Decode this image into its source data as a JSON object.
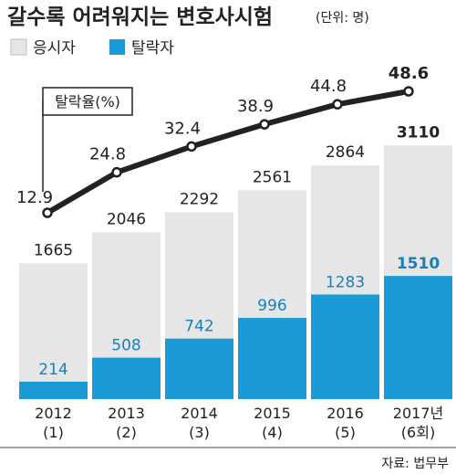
{
  "chart_data": {
    "type": "bar",
    "title": "갈수록 어려워지는 변호사시험",
    "unit_note": "(단위: 명)",
    "categories": [
      "2012",
      "2013",
      "2014",
      "2015",
      "2016",
      "2017년"
    ],
    "category_sublabels": [
      "(1)",
      "(2)",
      "(3)",
      "(4)",
      "(5)",
      "(6회)"
    ],
    "series": [
      {
        "name": "응시자",
        "values": [
          1665,
          2046,
          2292,
          2561,
          2864,
          3110
        ],
        "color": "#e6e6e6"
      },
      {
        "name": "탈락자",
        "values": [
          214,
          508,
          742,
          996,
          1283,
          1510
        ],
        "color": "#1a9ad6"
      }
    ],
    "line_series": {
      "name": "탈락율(%)",
      "values": [
        12.9,
        24.8,
        32.4,
        38.9,
        44.8,
        48.6
      ],
      "color": "#222222"
    },
    "ylim": [
      0,
      3200
    ],
    "legend": "top-left",
    "source": "자료: 법무부"
  }
}
